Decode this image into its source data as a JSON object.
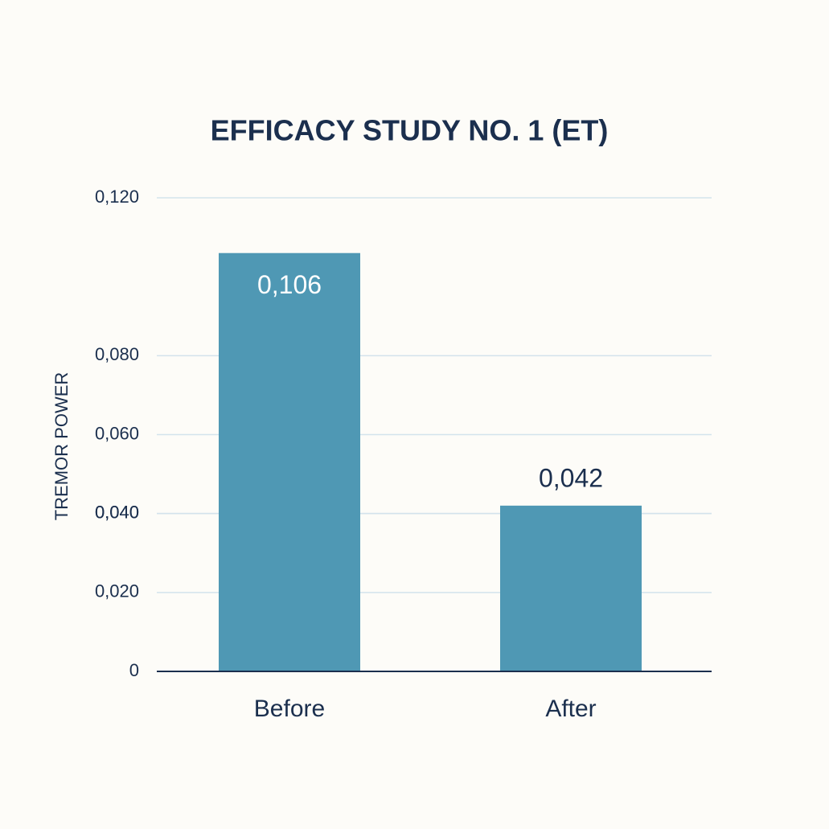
{
  "chart_data": {
    "type": "bar",
    "title": "EFFICACY STUDY NO. 1 (ET)",
    "y_label": "TREMOR POWER",
    "categories": [
      "Before",
      "After"
    ],
    "values": [
      0.106,
      0.042
    ],
    "value_labels": [
      "0,106",
      "0,042"
    ],
    "color": "#4f98b4",
    "ylim": [
      0,
      0.12
    ],
    "yticks": [
      {
        "value": 0.12,
        "label": "0,120"
      },
      {
        "value": 0.08,
        "label": "0,080"
      },
      {
        "value": 0.06,
        "label": "0,060"
      },
      {
        "value": 0.04,
        "label": "0,040"
      },
      {
        "value": 0.02,
        "label": "0,020"
      },
      {
        "value": 0.04,
        "label": "0,040"
      },
      0
    ],
    "grid": true
  }
}
